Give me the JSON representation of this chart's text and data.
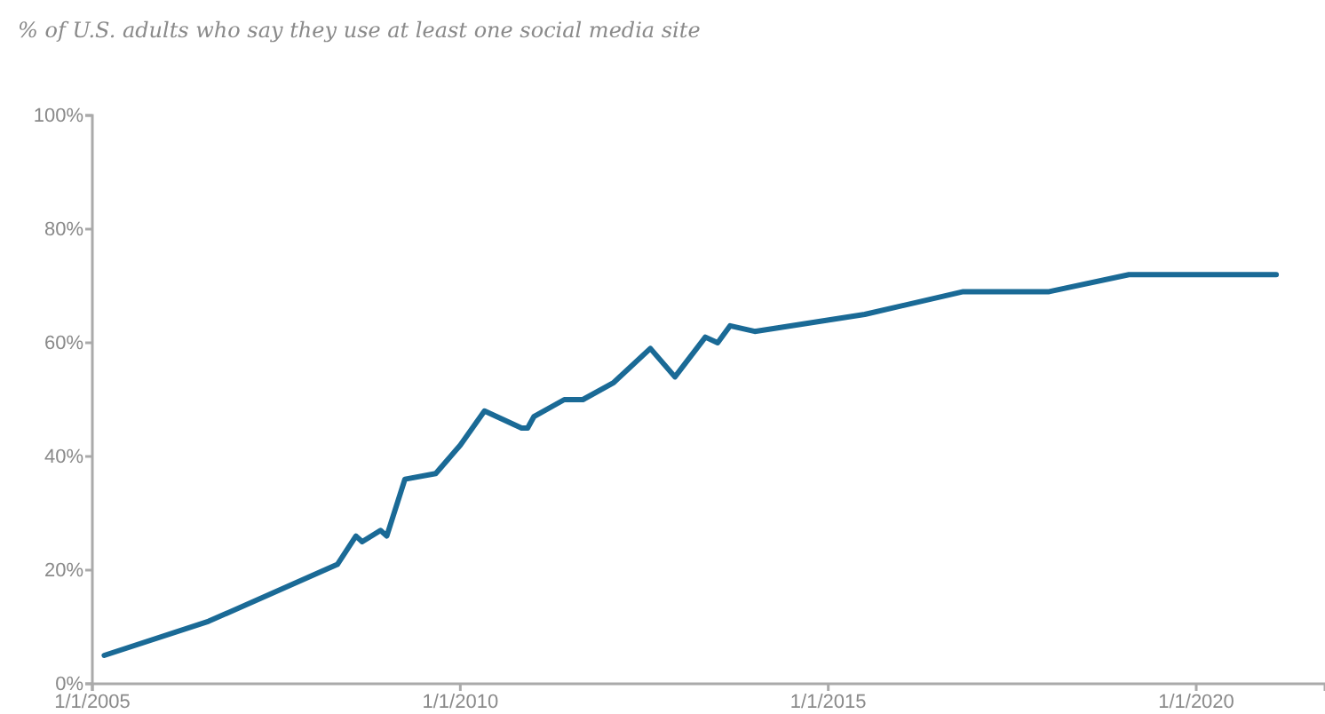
{
  "chart_data": {
    "type": "line",
    "title": "% of U.S. adults who say they use at least one social media site",
    "x": [
      "2005-03",
      "2006-08",
      "2008-05",
      "2008-08",
      "2008-09",
      "2008-12",
      "2009-01",
      "2009-04",
      "2009-09",
      "2010-01",
      "2010-05",
      "2010-11",
      "2010-12",
      "2011-01",
      "2011-06",
      "2011-09",
      "2012-02",
      "2012-08",
      "2012-12",
      "2013-05",
      "2013-07",
      "2013-09",
      "2014-01",
      "2015-07",
      "2016-11",
      "2018-01",
      "2019-02",
      "2021-02"
    ],
    "series": [
      {
        "color": "#1a6a96",
        "values": [
          5,
          11,
          21,
          26,
          25,
          27,
          26,
          36,
          37,
          42,
          48,
          45,
          45,
          47,
          50,
          50,
          53,
          59,
          54,
          61,
          60,
          63,
          62,
          65,
          69,
          69,
          72,
          72
        ]
      }
    ],
    "xlim": [
      "2005-01-01",
      "2021-10-01"
    ],
    "xticks": [
      {
        "value": "2005-01-01",
        "label": "1/1/2005"
      },
      {
        "value": "2010-01-01",
        "label": "1/1/2010"
      },
      {
        "value": "2015-01-01",
        "label": "1/1/2015"
      },
      {
        "value": "2020-01-01",
        "label": "1/1/2020"
      }
    ],
    "ylim": [
      0,
      100
    ],
    "yticks": [
      {
        "value": 0,
        "label": "0%"
      },
      {
        "value": 20,
        "label": "20%"
      },
      {
        "value": 40,
        "label": "40%"
      },
      {
        "value": 60,
        "label": "60%"
      },
      {
        "value": 80,
        "label": "80%"
      },
      {
        "value": 100,
        "label": "100%"
      }
    ],
    "grid": false,
    "marker": "none",
    "line_style": "solid"
  }
}
